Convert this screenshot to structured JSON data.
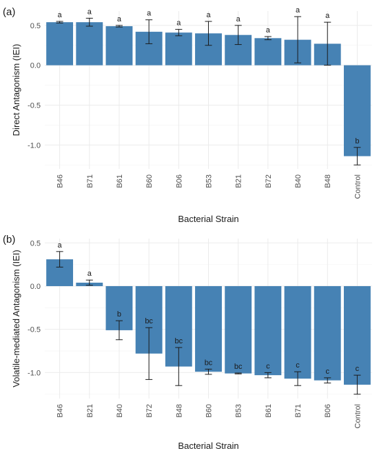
{
  "chart_data": [
    {
      "type": "bar",
      "panel_label": "(a)",
      "title": "",
      "xlabel": "Bacterial Strain",
      "ylabel": "Direct Antagonism (IEI)",
      "ylim": [
        -1.3,
        0.68
      ],
      "yticks": [
        -1.0,
        -0.5,
        0.0,
        0.5
      ],
      "ytick_labels": [
        "-1.0",
        "-0.5",
        "0.0",
        "0.5"
      ],
      "grid": true,
      "bar_color": "#4682B4",
      "categories": [
        "B46",
        "B71",
        "B61",
        "B60",
        "B06",
        "B53",
        "B21",
        "B72",
        "B40",
        "B48",
        "Control"
      ],
      "values": [
        0.54,
        0.54,
        0.49,
        0.42,
        0.41,
        0.4,
        0.38,
        0.34,
        0.32,
        0.27,
        -1.14
      ],
      "errors": [
        0.01,
        0.05,
        0.01,
        0.15,
        0.04,
        0.15,
        0.12,
        0.02,
        0.29,
        0.27,
        0.11
      ],
      "letters": [
        "a",
        "a",
        "a",
        "a",
        "a",
        "a",
        "a",
        "a",
        "a",
        "a",
        "b"
      ]
    },
    {
      "type": "bar",
      "panel_label": "(b)",
      "title": "",
      "xlabel": "Bacterial Strain",
      "ylabel": "Volatile-mediated Antagonism (IEI)",
      "ylim": [
        -1.3,
        0.55
      ],
      "yticks": [
        -1.0,
        -0.5,
        0.0,
        0.5
      ],
      "ytick_labels": [
        "-1.0",
        "-0.5",
        "0.0",
        "0.5"
      ],
      "grid": true,
      "bar_color": "#4682B4",
      "categories": [
        "B46",
        "B21",
        "B40",
        "B72",
        "B48",
        "B60",
        "B53",
        "B61",
        "B71",
        "B06",
        "Control"
      ],
      "values": [
        0.31,
        0.04,
        -0.51,
        -0.78,
        -0.93,
        -0.99,
        -1.01,
        -1.03,
        -1.07,
        -1.09,
        -1.14
      ],
      "errors": [
        0.09,
        0.03,
        0.11,
        0.3,
        0.22,
        0.03,
        0.005,
        0.03,
        0.08,
        0.03,
        0.11
      ],
      "letters": [
        "a",
        "a",
        "b",
        "bc",
        "bc",
        "bc",
        "bc",
        "c",
        "c",
        "c",
        "c"
      ]
    }
  ]
}
